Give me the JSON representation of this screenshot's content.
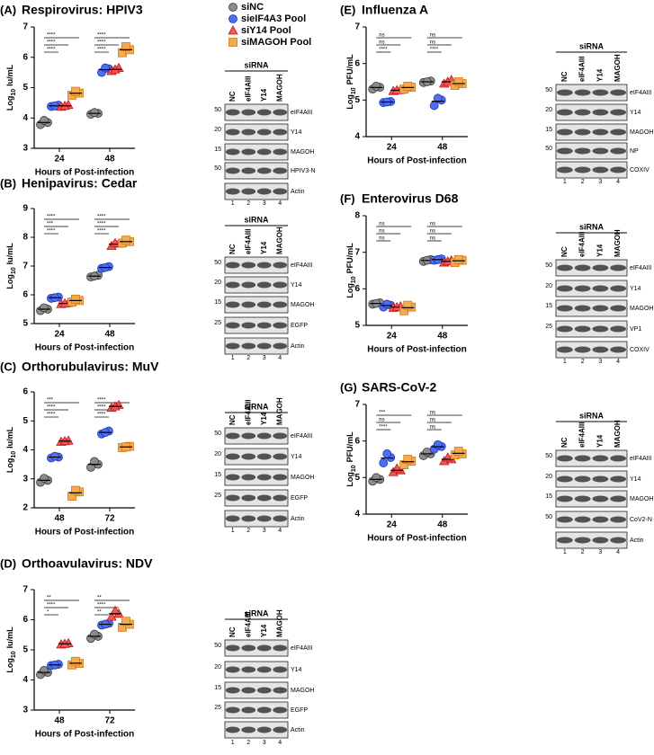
{
  "chart_data": [
    {
      "type": "dot",
      "panel": "(A)",
      "title": "Respirovirus: HPIV3",
      "ylabel": {
        "base": "Log",
        "sub": "10",
        "unit": "Iu/mL"
      },
      "xlabel": "Hours of Post-infection",
      "categories": [
        "24",
        "48"
      ],
      "ylim": [
        3,
        7
      ],
      "yticks": [
        3,
        4,
        5,
        6,
        7
      ],
      "series": [
        {
          "name": "siNC",
          "color": "#8c8c8c",
          "stroke": "#3a3a3a",
          "marker": "circle",
          "values": [
            [
              3.78,
              3.85,
              3.92
            ],
            [
              4.12,
              4.15,
              4.18
            ]
          ]
        },
        {
          "name": "sieIF4A3 Pool",
          "color": "#4f6ff0",
          "stroke": "#1a36b0",
          "marker": "circle",
          "values": [
            [
              4.38,
              4.42,
              4.4
            ],
            [
              5.5,
              5.62,
              5.65
            ]
          ]
        },
        {
          "name": "siY14 Pool",
          "color": "#f25656",
          "stroke": "#c01818",
          "marker": "triangle",
          "values": [
            [
              4.37,
              4.43,
              4.4
            ],
            [
              5.55,
              5.65,
              5.6
            ]
          ]
        },
        {
          "name": "siMAGOH Pool",
          "color": "#f6a94f",
          "stroke": "#d07a12",
          "marker": "square",
          "values": [
            [
              4.75,
              4.82,
              4.88
            ],
            [
              6.15,
              6.25,
              6.35
            ]
          ]
        }
      ],
      "significance": [
        [
          "****",
          "****",
          "****"
        ],
        [
          "****",
          "****",
          "****"
        ]
      ]
    },
    {
      "type": "dot",
      "panel": "(B)",
      "title": "Henipavirus: Cedar",
      "ylabel": {
        "base": "Log",
        "sub": "10",
        "unit": "Iu/mL"
      },
      "xlabel": "Hours of Post-infection",
      "categories": [
        "24",
        "48"
      ],
      "ylim": [
        5,
        9
      ],
      "yticks": [
        5,
        6,
        7,
        8,
        9
      ],
      "series": [
        {
          "values": [
            [
              5.45,
              5.5,
              5.55
            ],
            [
              6.62,
              6.68,
              6.65
            ]
          ]
        },
        {
          "values": [
            [
              5.88,
              5.92,
              5.9
            ],
            [
              6.92,
              6.98,
              6.95
            ]
          ]
        },
        {
          "values": [
            [
              5.68,
              5.72,
              5.7
            ],
            [
              7.7,
              7.78,
              7.8
            ]
          ]
        },
        {
          "values": [
            [
              5.75,
              5.8,
              5.85
            ],
            [
              7.8,
              7.85,
              7.9
            ]
          ]
        }
      ],
      "significance": [
        [
          "****",
          "***",
          "****"
        ],
        [
          "****",
          "****",
          "****"
        ]
      ]
    },
    {
      "type": "dot",
      "panel": "(C)",
      "title": "Orthorubulavirus: MuV",
      "ylabel": {
        "base": "Log",
        "sub": "10",
        "unit": "Iu/mL"
      },
      "xlabel": "Hours of Post-infection",
      "categories": [
        "48",
        "72"
      ],
      "ylim": [
        2,
        6
      ],
      "yticks": [
        2,
        3,
        4,
        5,
        6
      ],
      "series": [
        {
          "values": [
            [
              2.88,
              2.95,
              3.02
            ],
            [
              3.4,
              3.5,
              3.6
            ]
          ]
        },
        {
          "values": [
            [
              3.72,
              3.75,
              3.78
            ],
            [
              4.55,
              4.65,
              4.6
            ]
          ]
        },
        {
          "values": [
            [
              4.28,
              4.32,
              4.3
            ],
            [
              5.45,
              5.55,
              5.5
            ]
          ]
        },
        {
          "values": [
            [
              2.4,
              2.55,
              2.6
            ],
            [
              4.08,
              4.12,
              4.1
            ]
          ]
        }
      ],
      "significance": [
        [
          "****",
          "****",
          "***"
        ],
        [
          "****",
          "****",
          "****"
        ]
      ]
    },
    {
      "type": "dot",
      "panel": "(D)",
      "title": "Orthoavulavirus: NDV",
      "ylabel": {
        "base": "Log",
        "sub": "10",
        "unit": "Iu/mL"
      },
      "xlabel": "Hours of Post-infection",
      "categories": [
        "48",
        "72"
      ],
      "ylim": [
        3,
        7
      ],
      "yticks": [
        3,
        4,
        5,
        6,
        7
      ],
      "series": [
        {
          "values": [
            [
              4.18,
              4.25,
              4.32
            ],
            [
              5.38,
              5.45,
              5.52
            ]
          ]
        },
        {
          "values": [
            [
              4.48,
              4.52,
              4.5
            ],
            [
              5.82,
              5.88,
              5.85
            ]
          ]
        },
        {
          "values": [
            [
              5.18,
              5.22,
              5.2
            ],
            [
              6.1,
              6.2,
              6.3
            ]
          ]
        },
        {
          "values": [
            [
              4.5,
              4.55,
              4.62
            ],
            [
              5.75,
              5.85,
              5.95
            ]
          ]
        }
      ],
      "significance": [
        [
          "*",
          "****",
          "**"
        ],
        [
          "**",
          "****",
          "**"
        ]
      ]
    },
    {
      "type": "dot",
      "panel": "(E)",
      "title": "Influenza A",
      "ylabel": {
        "base": "Log",
        "sub": "10",
        "unit": "PFU/mL"
      },
      "xlabel": "Hours of Post-infection",
      "categories": [
        "24",
        "48"
      ],
      "ylim": [
        4,
        7
      ],
      "yticks": [
        4,
        5,
        6,
        7
      ],
      "series": [
        {
          "values": [
            [
              5.3,
              5.35,
              5.38
            ],
            [
              5.48,
              5.52,
              5.5
            ]
          ]
        },
        {
          "values": [
            [
              4.93,
              4.96,
              4.95
            ],
            [
              4.85,
              5.0,
              5.05
            ]
          ]
        },
        {
          "values": [
            [
              5.25,
              5.28,
              5.27
            ],
            [
              5.45,
              5.55,
              5.5
            ]
          ]
        },
        {
          "values": [
            [
              5.3,
              5.35,
              5.38
            ],
            [
              5.4,
              5.45,
              5.5
            ]
          ]
        }
      ],
      "significance": [
        [
          "****",
          "ns",
          "ns"
        ],
        [
          "****",
          "ns",
          "ns"
        ]
      ]
    },
    {
      "type": "dot",
      "panel": "(F)",
      "title": "Enterovirus D68",
      "ylabel": {
        "base": "Log",
        "sub": "10",
        "unit": "PFU/mL"
      },
      "xlabel": "Hours of Post-infection",
      "categories": [
        "24",
        "48"
      ],
      "ylim": [
        5,
        8
      ],
      "yticks": [
        5,
        6,
        7,
        8
      ],
      "series": [
        {
          "values": [
            [
              5.58,
              5.62,
              5.6
            ],
            [
              6.75,
              6.8,
              6.78
            ]
          ]
        },
        {
          "values": [
            [
              5.5,
              5.55,
              5.58
            ],
            [
              6.78,
              6.82,
              6.8
            ]
          ]
        },
        {
          "values": [
            [
              5.48,
              5.52,
              5.5
            ],
            [
              6.72,
              6.78,
              6.75
            ]
          ]
        },
        {
          "values": [
            [
              5.4,
              5.5,
              5.55
            ],
            [
              6.72,
              6.78,
              6.8
            ]
          ]
        }
      ],
      "significance": [
        [
          "ns",
          "ns",
          "ns"
        ],
        [
          "ns",
          "ns",
          "ns"
        ]
      ]
    },
    {
      "type": "dot",
      "panel": "(G)",
      "title": "SARS-CoV-2",
      "ylabel": {
        "base": "Log",
        "sub": "10",
        "unit": "PFU/mL"
      },
      "xlabel": "Hours of Post-infection",
      "categories": [
        "24",
        "48"
      ],
      "ylim": [
        4,
        7
      ],
      "yticks": [
        4,
        5,
        6,
        7
      ],
      "series": [
        {
          "values": [
            [
              4.9,
              4.95,
              5.0
            ],
            [
              5.6,
              5.65,
              5.7
            ]
          ]
        },
        {
          "values": [
            [
              5.4,
              5.55,
              5.65
            ],
            [
              5.78,
              5.85,
              5.9
            ]
          ]
        },
        {
          "values": [
            [
              5.15,
              5.2,
              5.25
            ],
            [
              5.45,
              5.5,
              5.55
            ]
          ]
        },
        {
          "values": [
            [
              5.35,
              5.45,
              5.5
            ],
            [
              5.62,
              5.65,
              5.72
            ]
          ]
        }
      ],
      "significance": [
        [
          "****",
          "ns",
          "***"
        ],
        [
          "ns",
          "ns",
          "ns"
        ]
      ]
    }
  ],
  "blots": [
    {
      "header": "siRNA",
      "lanes": [
        "NC",
        "eIF4AIII",
        "Y14",
        "MAGOH"
      ],
      "bands": [
        {
          "label": "eIF4AIII",
          "kda": 50
        },
        {
          "label": "Y14",
          "kda": 20
        },
        {
          "label": "MAGOH",
          "kda": 15
        },
        {
          "label": "HPIV3-N",
          "kda": 50
        },
        {
          "label": "Actin"
        }
      ],
      "lane_numbers": [
        1,
        2,
        3,
        4
      ]
    },
    {
      "header": "siRNA",
      "lanes": [
        "NC",
        "eIF4AIII",
        "Y14",
        "MAGOH"
      ],
      "bands": [
        {
          "label": "eIF4AIII",
          "kda": 50
        },
        {
          "label": "Y14",
          "kda": 20
        },
        {
          "label": "MAGOH",
          "kda": 15
        },
        {
          "label": "EGFP",
          "kda": 25
        },
        {
          "label": "Actin"
        }
      ],
      "lane_numbers": [
        1,
        2,
        3,
        4
      ]
    },
    {
      "header": "siRNA",
      "lanes": [
        "NC",
        "eIF4AIII",
        "Y14",
        "MAGOH"
      ],
      "bands": [
        {
          "label": "eIF4AIII",
          "kda": 50
        },
        {
          "label": "Y14",
          "kda": 20
        },
        {
          "label": "MAGOH",
          "kda": 15
        },
        {
          "label": "EGFP",
          "kda": 25
        },
        {
          "label": "Actin"
        }
      ],
      "lane_numbers": [
        1,
        2,
        3,
        4
      ]
    },
    {
      "header": "siRNA",
      "lanes": [
        "NC",
        "eIF4AIII",
        "Y14",
        "MAGOH"
      ],
      "bands": [
        {
          "label": "eIF4AIII",
          "kda": 50
        },
        {
          "label": "Y14",
          "kda": 20
        },
        {
          "label": "MAGOH",
          "kda": 15
        },
        {
          "label": "EGFP",
          "kda": 25
        },
        {
          "label": "Actin"
        }
      ],
      "lane_numbers": [
        1,
        2,
        3,
        4
      ]
    },
    {
      "header": "siRNA",
      "lanes": [
        "NC",
        "eIF4AIII",
        "Y14",
        "MAGOH"
      ],
      "bands": [
        {
          "label": "eIF4AIII",
          "kda": 50
        },
        {
          "label": "Y14",
          "kda": 20
        },
        {
          "label": "MAGOH",
          "kda": 15
        },
        {
          "label": "NP",
          "kda": 50
        },
        {
          "label": "COXIV"
        }
      ],
      "lane_numbers": [
        1,
        2,
        3,
        4
      ]
    },
    {
      "header": "siRNA",
      "lanes": [
        "NC",
        "eIF4AIII",
        "Y14",
        "MAGOH"
      ],
      "bands": [
        {
          "label": "eIF4AIII",
          "kda": 50
        },
        {
          "label": "Y14",
          "kda": 20
        },
        {
          "label": "MAGOH",
          "kda": 15
        },
        {
          "label": "VP1",
          "kda": 25
        },
        {
          "label": "COXIV"
        }
      ],
      "lane_numbers": [
        1,
        2,
        3,
        4
      ]
    },
    {
      "header": "siRNA",
      "lanes": [
        "NC",
        "eIF4AIII",
        "Y14",
        "MAGOH"
      ],
      "bands": [
        {
          "label": "eIF4AIII",
          "kda": 50
        },
        {
          "label": "Y14",
          "kda": 20
        },
        {
          "label": "MAGOH",
          "kda": 15
        },
        {
          "label": "CoV2-N",
          "kda": 50
        },
        {
          "label": "Actin"
        }
      ],
      "lane_numbers": [
        1,
        2,
        3,
        4
      ]
    }
  ]
}
